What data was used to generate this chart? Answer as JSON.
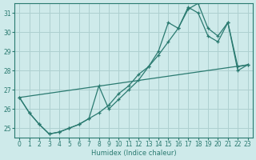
{
  "xlabel": "Humidex (Indice chaleur)",
  "ylabel": "",
  "background_color": "#ceeaea",
  "grid_color": "#aed0d0",
  "line_color": "#2a7a70",
  "xlim": [
    -0.5,
    23.5
  ],
  "ylim": [
    24.5,
    31.5
  ],
  "yticks": [
    25,
    26,
    27,
    28,
    29,
    30,
    31
  ],
  "xticks": [
    0,
    1,
    2,
    3,
    4,
    5,
    6,
    7,
    8,
    9,
    10,
    11,
    12,
    13,
    14,
    15,
    16,
    17,
    18,
    19,
    20,
    21,
    22,
    23
  ],
  "line1_x": [
    0,
    1,
    2,
    3,
    4,
    5,
    6,
    7,
    8,
    9,
    10,
    11,
    12,
    13,
    14,
    15,
    16,
    17,
    18,
    19,
    20,
    21,
    22,
    23
  ],
  "line1_y": [
    26.6,
    25.8,
    25.2,
    24.7,
    24.8,
    25.0,
    25.2,
    25.5,
    25.8,
    26.2,
    26.8,
    27.2,
    27.8,
    28.2,
    28.8,
    29.5,
    30.2,
    31.3,
    31.0,
    29.8,
    29.5,
    30.5,
    28.0,
    28.3
  ],
  "line2_x": [
    0,
    1,
    2,
    3,
    4,
    5,
    6,
    7,
    8,
    9,
    10,
    11,
    12,
    13,
    14,
    15,
    16,
    17,
    18,
    19,
    20,
    21,
    22,
    23
  ],
  "line2_y": [
    26.6,
    25.8,
    25.2,
    24.7,
    24.8,
    25.0,
    25.2,
    25.5,
    27.2,
    26.0,
    26.5,
    27.0,
    27.5,
    28.2,
    29.0,
    30.5,
    30.2,
    31.2,
    31.5,
    30.2,
    29.8,
    30.5,
    28.2,
    28.3
  ],
  "line3_x": [
    0,
    23
  ],
  "line3_y": [
    26.6,
    28.3
  ]
}
